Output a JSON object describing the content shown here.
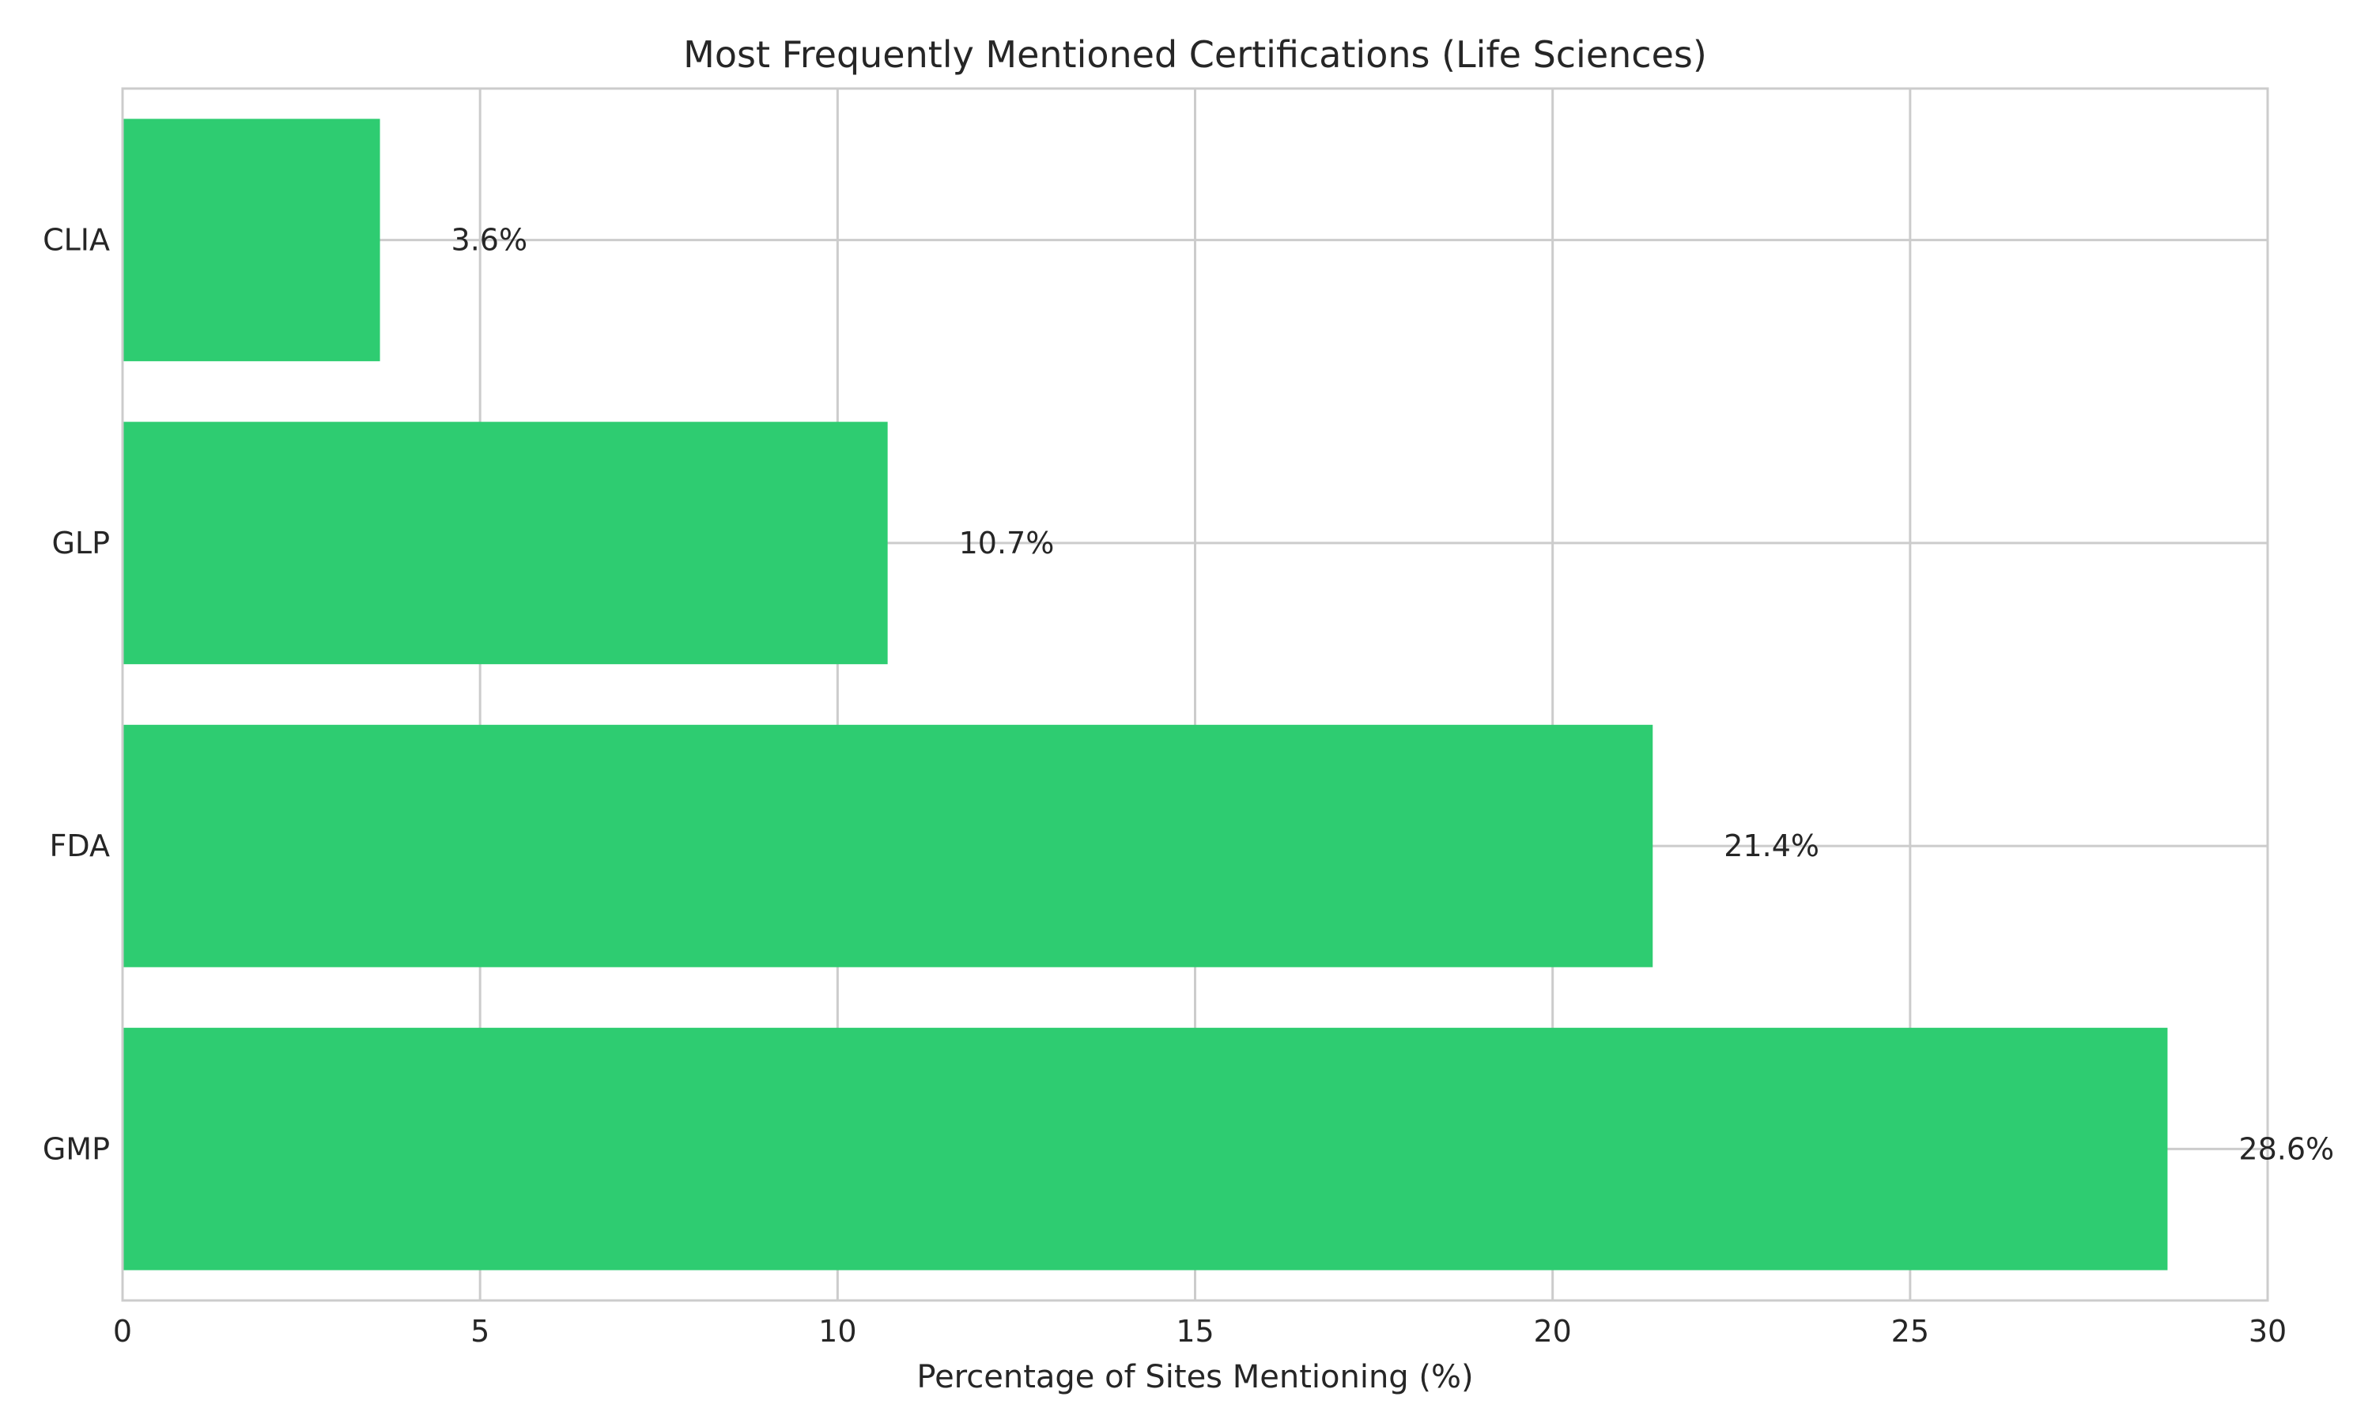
{
  "chart_data": {
    "type": "bar",
    "orientation": "horizontal",
    "title": "Most Frequently Mentioned Certifications (Life Sciences)",
    "xlabel": "Percentage of Sites Mentioning (%)",
    "ylabel": "",
    "categories": [
      "GMP",
      "FDA",
      "GLP",
      "CLIA"
    ],
    "values": [
      28.6,
      21.4,
      10.7,
      3.6
    ],
    "data_labels": [
      "28.6%",
      "21.4%",
      "10.7%",
      "3.6%"
    ],
    "xlim": [
      0,
      30
    ],
    "xticks": [
      0,
      5,
      10,
      15,
      20,
      25,
      30
    ],
    "xtick_labels": [
      "0",
      "5",
      "10",
      "15",
      "20",
      "25",
      "30"
    ],
    "grid": true,
    "legend": "none",
    "bar_color": "#2ecc71"
  }
}
